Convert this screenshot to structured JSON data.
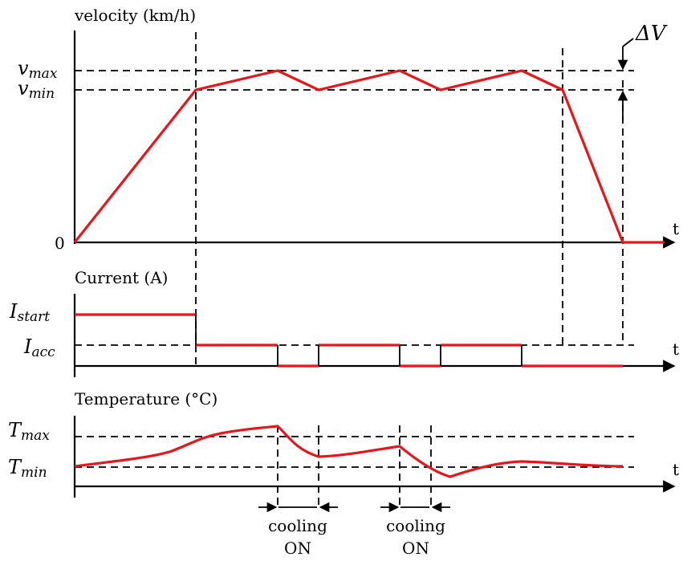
{
  "velocity": {
    "title": "velocity (km/h)",
    "vmax": {
      "main": "v",
      "sub": "max"
    },
    "vmin": {
      "main": "v",
      "sub": "min"
    },
    "zero": "0",
    "t": "t",
    "delta": "ΔV"
  },
  "current": {
    "title": "Current (A)",
    "istart": {
      "main": "I",
      "sub": "start"
    },
    "iacc": {
      "main": "I",
      "sub": "acc"
    },
    "t": "t"
  },
  "temperature": {
    "title": "Temperature (°C)",
    "tmax": {
      "main": "T",
      "sub": "max"
    },
    "tmin": {
      "main": "T",
      "sub": "min"
    },
    "t": "t"
  },
  "cooling": [
    {
      "line1": "cooling",
      "line2": "ON"
    },
    {
      "line1": "cooling",
      "line2": "ON"
    }
  ],
  "colors": {
    "signal": "#e8151b",
    "axis": "#000000"
  }
}
